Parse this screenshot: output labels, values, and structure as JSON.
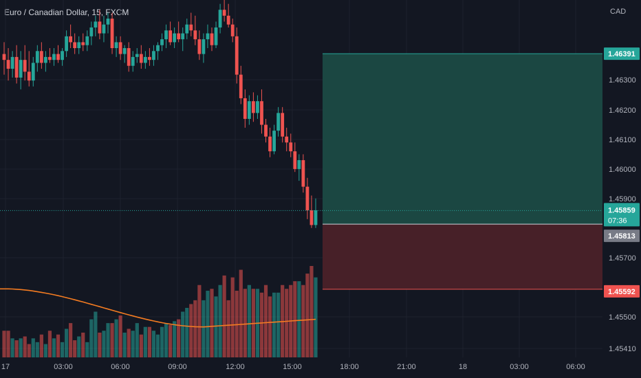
{
  "chart_title": "Euro / Canadian Dollar, 15, FXCM",
  "colors": {
    "background": "#131722",
    "up": "#26a69a",
    "down": "#ef5350",
    "ma_line": "#f57c21",
    "profit_zone": "#1b4a45",
    "loss_zone": "#4a2129",
    "grid": "#1e222d"
  },
  "chart_data": {
    "type": "candlestick",
    "symbol": "EURCAD",
    "timeframe": "15",
    "currency": "CAD",
    "y_ticks": [
      "1.46300",
      "1.46200",
      "1.46100",
      "1.46000",
      "1.45900",
      "1.45700",
      "1.45500",
      "1.45410"
    ],
    "x_ticks": [
      "17",
      "03:00",
      "06:00",
      "09:00",
      "12:00",
      "15:00",
      "18:00",
      "21:00",
      "18",
      "03:00",
      "06:00"
    ],
    "price_labels": {
      "take_profit": "1.46391",
      "last_price": "1.45859",
      "countdown": "07:36",
      "entry": "1.45813",
      "stop_loss": "1.45592"
    },
    "position": {
      "type": "long",
      "entry": 1.45813,
      "take_profit": 1.46391,
      "stop_loss": 1.45592
    },
    "ohlc": [
      [
        1.4639,
        1.4643,
        1.4632,
        1.4637
      ],
      [
        1.4637,
        1.4641,
        1.463,
        1.4634
      ],
      [
        1.4634,
        1.464,
        1.4631,
        1.4638
      ],
      [
        1.4638,
        1.4642,
        1.4629,
        1.4631
      ],
      [
        1.4631,
        1.464,
        1.4627,
        1.4637
      ],
      [
        1.4637,
        1.4642,
        1.463,
        1.4633
      ],
      [
        1.4633,
        1.464,
        1.4628,
        1.463
      ],
      [
        1.463,
        1.4638,
        1.4628,
        1.4636
      ],
      [
        1.4636,
        1.4642,
        1.4633,
        1.464
      ],
      [
        1.464,
        1.4643,
        1.4634,
        1.4636
      ],
      [
        1.4636,
        1.464,
        1.4633,
        1.4638
      ],
      [
        1.4638,
        1.4641,
        1.4636,
        1.4637
      ],
      [
        1.4637,
        1.4641,
        1.4635,
        1.4639
      ],
      [
        1.4639,
        1.4642,
        1.4636,
        1.4637
      ],
      [
        1.4637,
        1.4641,
        1.4635,
        1.464
      ],
      [
        1.464,
        1.4647,
        1.4638,
        1.4645
      ],
      [
        1.4645,
        1.4649,
        1.4641,
        1.4643
      ],
      [
        1.4643,
        1.4646,
        1.4639,
        1.4641
      ],
      [
        1.4641,
        1.4645,
        1.4639,
        1.4643
      ],
      [
        1.4643,
        1.4646,
        1.464,
        1.4642
      ],
      [
        1.4642,
        1.4647,
        1.464,
        1.4645
      ],
      [
        1.4645,
        1.465,
        1.4642,
        1.4648
      ],
      [
        1.4648,
        1.4652,
        1.4645,
        1.465
      ],
      [
        1.465,
        1.4654,
        1.4644,
        1.4646
      ],
      [
        1.4646,
        1.4652,
        1.4643,
        1.4649
      ],
      [
        1.4649,
        1.4653,
        1.4646,
        1.4651
      ],
      [
        1.4651,
        1.4653,
        1.4639,
        1.4641
      ],
      [
        1.4641,
        1.4645,
        1.4638,
        1.4643
      ],
      [
        1.4643,
        1.4645,
        1.4637,
        1.4639
      ],
      [
        1.4639,
        1.4642,
        1.4636,
        1.4641
      ],
      [
        1.4641,
        1.4643,
        1.4633,
        1.4635
      ],
      [
        1.4635,
        1.464,
        1.4633,
        1.4638
      ],
      [
        1.4638,
        1.4641,
        1.4636,
        1.4639
      ],
      [
        1.4639,
        1.4642,
        1.4634,
        1.4636
      ],
      [
        1.4636,
        1.464,
        1.4634,
        1.4638
      ],
      [
        1.4638,
        1.4641,
        1.4635,
        1.4637
      ],
      [
        1.4637,
        1.4642,
        1.4635,
        1.464
      ],
      [
        1.464,
        1.4643,
        1.4637,
        1.4642
      ],
      [
        1.4642,
        1.4646,
        1.464,
        1.4644
      ],
      [
        1.4644,
        1.4649,
        1.4641,
        1.4647
      ],
      [
        1.4647,
        1.465,
        1.4642,
        1.4643
      ],
      [
        1.4643,
        1.4648,
        1.4641,
        1.4646
      ],
      [
        1.4646,
        1.465,
        1.4643,
        1.4644
      ],
      [
        1.4644,
        1.4648,
        1.464,
        1.4646
      ],
      [
        1.4646,
        1.4651,
        1.4644,
        1.4649
      ],
      [
        1.4649,
        1.4653,
        1.4645,
        1.4647
      ],
      [
        1.4647,
        1.4652,
        1.4642,
        1.4644
      ],
      [
        1.4644,
        1.4647,
        1.4637,
        1.4639
      ],
      [
        1.4639,
        1.4646,
        1.4636,
        1.4644
      ],
      [
        1.4644,
        1.4649,
        1.4641,
        1.4646
      ],
      [
        1.4646,
        1.4648,
        1.464,
        1.4642
      ],
      [
        1.4642,
        1.465,
        1.4641,
        1.4648
      ],
      [
        1.4648,
        1.4656,
        1.4646,
        1.4654
      ],
      [
        1.4654,
        1.4658,
        1.465,
        1.4652
      ],
      [
        1.4652,
        1.4656,
        1.4648,
        1.4649
      ],
      [
        1.4649,
        1.4651,
        1.4643,
        1.4645
      ],
      [
        1.4645,
        1.4648,
        1.4629,
        1.4632
      ],
      [
        1.4632,
        1.4635,
        1.4622,
        1.4624
      ],
      [
        1.4624,
        1.4627,
        1.4614,
        1.4617
      ],
      [
        1.4617,
        1.4625,
        1.4615,
        1.4623
      ],
      [
        1.4623,
        1.4626,
        1.4616,
        1.4619
      ],
      [
        1.4619,
        1.4625,
        1.4617,
        1.4623
      ],
      [
        1.4623,
        1.4627,
        1.4612,
        1.4615
      ],
      [
        1.4615,
        1.4617,
        1.4609,
        1.4611
      ],
      [
        1.4611,
        1.4614,
        1.4604,
        1.4606
      ],
      [
        1.4606,
        1.4615,
        1.4605,
        1.4613
      ],
      [
        1.4613,
        1.4621,
        1.4611,
        1.4619
      ],
      [
        1.4619,
        1.4621,
        1.4609,
        1.4611
      ],
      [
        1.4611,
        1.4614,
        1.4606,
        1.4609
      ],
      [
        1.4609,
        1.4612,
        1.4604,
        1.4606
      ],
      [
        1.4606,
        1.4609,
        1.4599,
        1.46
      ],
      [
        1.46,
        1.4605,
        1.4596,
        1.4603
      ],
      [
        1.4603,
        1.4605,
        1.4592,
        1.4594
      ],
      [
        1.4594,
        1.4597,
        1.4583,
        1.4586
      ],
      [
        1.4586,
        1.4591,
        1.458,
        1.4581
      ],
      [
        1.4581,
        1.459,
        1.458,
        1.4586
      ]
    ],
    "volume": [
      14,
      14,
      10,
      9,
      10,
      11,
      7,
      10,
      8,
      12,
      7,
      14,
      10,
      12,
      8,
      15,
      18,
      9,
      11,
      13,
      8,
      20,
      24,
      13,
      14,
      18,
      18,
      20,
      22,
      13,
      15,
      14,
      18,
      12,
      16,
      16,
      14,
      12,
      16,
      18,
      17,
      19,
      20,
      24,
      26,
      28,
      30,
      38,
      30,
      35,
      36,
      32,
      38,
      43,
      30,
      42,
      35,
      46,
      36,
      38,
      36,
      36,
      34,
      38,
      32,
      34,
      34,
      38,
      36,
      38,
      40,
      40,
      38,
      44,
      48,
      42
    ],
    "moving_average": {
      "start": 36,
      "end": 20,
      "min": 16,
      "min_index": 48
    }
  }
}
